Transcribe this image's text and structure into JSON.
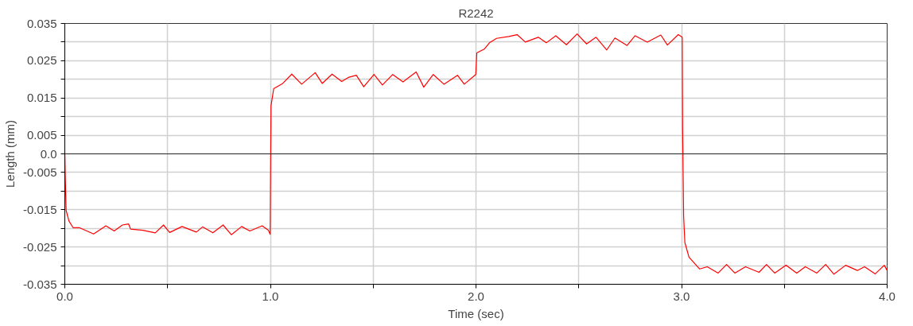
{
  "chart_data": {
    "type": "line",
    "title": "R2242",
    "xlabel": "Time (sec)",
    "ylabel": "Length (mm)",
    "xlim": [
      0,
      4
    ],
    "ylim": [
      -0.035,
      0.035
    ],
    "xticks": [
      {
        "value": 0,
        "label": "0.0"
      },
      {
        "value": 0.5,
        "label": null
      },
      {
        "value": 1,
        "label": "1.0"
      },
      {
        "value": 1.5,
        "label": null
      },
      {
        "value": 2,
        "label": "2.0"
      },
      {
        "value": 2.5,
        "label": null
      },
      {
        "value": 3,
        "label": "3.0"
      },
      {
        "value": 3.5,
        "label": null
      },
      {
        "value": 4,
        "label": "4.0"
      }
    ],
    "yticks": [
      -0.035,
      {
        "value": -0.03,
        "label": null
      },
      -0.025,
      {
        "value": -0.02,
        "label": null
      },
      -0.015,
      {
        "value": -0.01,
        "label": null
      },
      -0.005,
      {
        "value": 0,
        "label": "0.0"
      },
      0.005,
      {
        "value": 0.01,
        "label": null
      },
      0.015,
      {
        "value": 0.02,
        "label": null
      },
      0.025,
      {
        "value": 0.03,
        "label": null
      },
      0.035
    ],
    "grid": true,
    "marker": "none",
    "line_style": "solid",
    "ref_lines": [
      {
        "axis": "y",
        "value": 0,
        "label": null,
        "color": "#333333"
      }
    ],
    "series": [
      {
        "color": "#ff0000",
        "x": [
          0,
          0.002,
          0.0065,
          0.02,
          0.04,
          0.07,
          0.14,
          0.2,
          0.24,
          0.28,
          0.31,
          0.32,
          0.38,
          0.44,
          0.48,
          0.51,
          0.57,
          0.64,
          0.67,
          0.72,
          0.77,
          0.81,
          0.86,
          0.9,
          0.96,
          0.99,
          0.999,
          1.003,
          1.016,
          1.06,
          1.104,
          1.152,
          1.218,
          1.252,
          1.3,
          1.347,
          1.379,
          1.418,
          1.454,
          1.504,
          1.545,
          1.595,
          1.645,
          1.709,
          1.746,
          1.792,
          1.844,
          1.91,
          1.943,
          1.999,
          2.004,
          2.04,
          2.067,
          2.1,
          2.16,
          2.2,
          2.24,
          2.303,
          2.342,
          2.388,
          2.44,
          2.492,
          2.538,
          2.584,
          2.636,
          2.676,
          2.735,
          2.774,
          2.833,
          2.899,
          2.931,
          2.984,
          3.003,
          3.005,
          3.01,
          3.016,
          3.036,
          3.088,
          3.125,
          3.178,
          3.219,
          3.259,
          3.311,
          3.377,
          3.413,
          3.453,
          3.508,
          3.56,
          3.602,
          3.658,
          3.701,
          3.741,
          3.798,
          3.855,
          3.89,
          3.942,
          3.986,
          4.0
        ],
        "values": [
          0,
          -0.006,
          -0.0152,
          -0.018,
          -0.0198,
          -0.0198,
          -0.0215,
          -0.0193,
          -0.0207,
          -0.0191,
          -0.0188,
          -0.0202,
          -0.0205,
          -0.0212,
          -0.0191,
          -0.0211,
          -0.0195,
          -0.021,
          -0.0196,
          -0.0212,
          -0.0191,
          -0.0217,
          -0.0195,
          -0.0207,
          -0.0193,
          -0.0205,
          -0.0216,
          0.0129,
          0.0175,
          0.0189,
          0.0214,
          0.0187,
          0.0218,
          0.0189,
          0.0214,
          0.0194,
          0.0205,
          0.0211,
          0.018,
          0.0213,
          0.0185,
          0.0213,
          0.0193,
          0.022,
          0.0179,
          0.0213,
          0.0187,
          0.0211,
          0.0187,
          0.0213,
          0.0271,
          0.0281,
          0.0299,
          0.031,
          0.0315,
          0.032,
          0.03,
          0.0313,
          0.0298,
          0.0317,
          0.0293,
          0.0322,
          0.0295,
          0.0313,
          0.0279,
          0.0311,
          0.0291,
          0.0317,
          0.03,
          0.0319,
          0.0292,
          0.032,
          0.0313,
          0.0073,
          -0.0168,
          -0.0238,
          -0.0277,
          -0.0309,
          -0.0303,
          -0.032,
          -0.0297,
          -0.032,
          -0.0303,
          -0.0318,
          -0.0297,
          -0.032,
          -0.0299,
          -0.032,
          -0.0303,
          -0.032,
          -0.0297,
          -0.0323,
          -0.0299,
          -0.0313,
          -0.0303,
          -0.0322,
          -0.0299,
          -0.0313
        ]
      }
    ]
  }
}
